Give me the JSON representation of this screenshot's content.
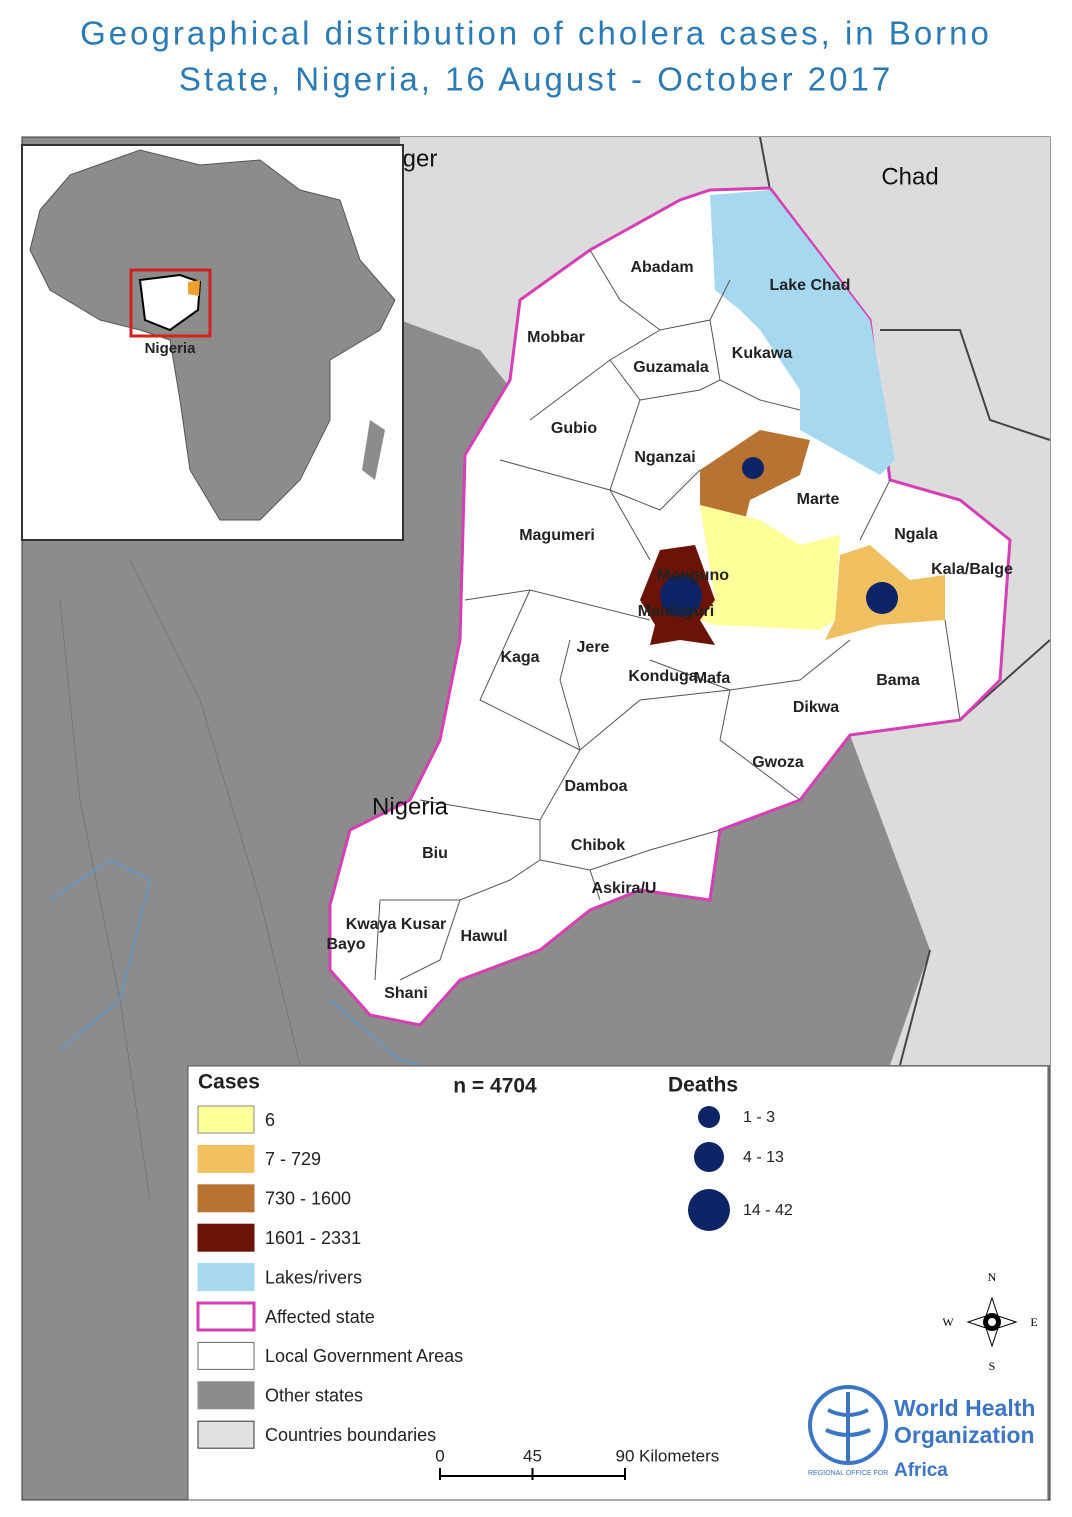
{
  "title": [
    "Geographical distribution of cholera cases, in Borno",
    "State, Nigeria, 16 August - October 2017"
  ],
  "map": {
    "countries": [
      "Niger",
      "Chad",
      "Nigeria"
    ],
    "inset_label": "Nigeria",
    "lgas": [
      "Abadam",
      "Lake Chad",
      "Mobbar",
      "Guzamala",
      "Kukawa",
      "Gubio",
      "Nganzai",
      "Marte",
      "Magumeri",
      "Monguno",
      "Maiduguri",
      "Ngala",
      "Kala/Balge",
      "Kaga",
      "Jere",
      "Konduga",
      "Mafa",
      "Bama",
      "Dikwa",
      "Gwoza",
      "Damboa",
      "Chibok",
      "Biu",
      "Askira/U",
      "Kwaya Kusar",
      "Bayo",
      "Hawul",
      "Shani"
    ]
  },
  "legend": {
    "cases_title": "Cases",
    "n": "n = 4704",
    "items": [
      {
        "label": "6",
        "fill": "#ffff99",
        "stroke": "#888888"
      },
      {
        "label": "7 - 729",
        "fill": "#f0c060",
        "stroke": "#f0c060"
      },
      {
        "label": "730 - 1600",
        "fill": "#b87333",
        "stroke": "#b87333"
      },
      {
        "label": "1601 - 2331",
        "fill": "#6b1307",
        "stroke": "#6b1307"
      },
      {
        "label": "Lakes/rivers",
        "fill": "#a6d9f0",
        "stroke": "#a6d9f0"
      },
      {
        "label": "Affected state",
        "fill": "#ffffff",
        "stroke": "#d63eb5"
      },
      {
        "label": "Local Government Areas",
        "fill": "#ffffff",
        "stroke": "#666666"
      },
      {
        "label": "Other states",
        "fill": "#8c8c8c",
        "stroke": "#8c8c8c"
      },
      {
        "label": "Countries boundaries",
        "fill": "#e0e0e0",
        "stroke": "#333333"
      }
    ],
    "deaths_title": "Deaths",
    "deaths": [
      "1 - 3",
      "4 - 13",
      "14 - 42"
    ],
    "deaths_color": "#0d2466"
  },
  "scale_bar": {
    "ticks": [
      0,
      45,
      90
    ],
    "unit": "Kilometers"
  },
  "compass": {
    "n": "N",
    "e": "E",
    "s": "S",
    "w": "W"
  },
  "logo": {
    "line1": "World Health",
    "line2": "Organization",
    "region": "REGIONAL OFFICE FOR",
    "africa": "Africa"
  }
}
